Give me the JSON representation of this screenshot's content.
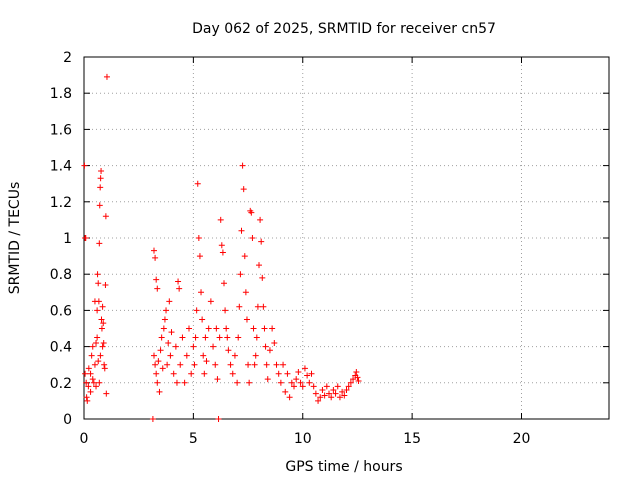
{
  "chart_data": {
    "type": "scatter",
    "title": "Day 062 of 2025, SRMTID for receiver cn57",
    "xlabel": "GPS time / hours",
    "ylabel": "SRMTID / TECUs",
    "xlim": [
      0,
      24
    ],
    "ylim": [
      0,
      2
    ],
    "xticks": [
      0,
      5,
      10,
      15,
      20
    ],
    "yticks": [
      0,
      0.2,
      0.4,
      0.6,
      0.8,
      1,
      1.2,
      1.4,
      1.6,
      1.8,
      2
    ],
    "xtick_labels": [
      "0",
      "5",
      "10",
      "15",
      "20"
    ],
    "ytick_labels": [
      "0",
      "0.2",
      "0.4",
      "0.6",
      "0.8",
      "1",
      "1.2",
      "1.4",
      "1.6",
      "1.8",
      "2"
    ],
    "grid": true,
    "marker": "+",
    "color": "#ff0000",
    "series": [
      {
        "name": "SRMTID",
        "points": [
          [
            0.02,
            1.4
          ],
          [
            0.05,
            1.0
          ],
          [
            0.08,
            1.0
          ],
          [
            0.05,
            0.25
          ],
          [
            0.1,
            0.2
          ],
          [
            0.12,
            0.12
          ],
          [
            0.15,
            0.1
          ],
          [
            0.2,
            0.18
          ],
          [
            0.22,
            0.28
          ],
          [
            0.3,
            0.25
          ],
          [
            0.35,
            0.35
          ],
          [
            0.4,
            0.4
          ],
          [
            0.45,
            0.2
          ],
          [
            0.5,
            0.3
          ],
          [
            0.55,
            0.42
          ],
          [
            0.6,
            0.6
          ],
          [
            0.62,
            0.8
          ],
          [
            0.65,
            0.75
          ],
          [
            0.68,
            0.65
          ],
          [
            0.7,
            0.97
          ],
          [
            0.72,
            1.18
          ],
          [
            0.74,
            1.28
          ],
          [
            0.76,
            1.33
          ],
          [
            0.78,
            1.37
          ],
          [
            0.8,
            0.55
          ],
          [
            0.82,
            0.5
          ],
          [
            0.85,
            0.62
          ],
          [
            0.88,
            0.53
          ],
          [
            0.9,
            0.42
          ],
          [
            0.92,
            0.3
          ],
          [
            0.95,
            0.28
          ],
          [
            0.98,
            0.74
          ],
          [
            1.0,
            1.12
          ],
          [
            1.02,
            0.14
          ],
          [
            1.05,
            1.89
          ],
          [
            0.3,
            0.15
          ],
          [
            0.4,
            0.22
          ],
          [
            0.55,
            0.18
          ],
          [
            0.6,
            0.45
          ],
          [
            0.75,
            0.35
          ],
          [
            0.85,
            0.4
          ],
          [
            0.7,
            0.2
          ],
          [
            0.5,
            0.65
          ],
          [
            0.65,
            0.32
          ],
          [
            3.15,
            0.0
          ],
          [
            6.15,
            0.0
          ],
          [
            3.2,
            0.93
          ],
          [
            3.25,
            0.89
          ],
          [
            3.3,
            0.77
          ],
          [
            3.35,
            0.72
          ],
          [
            3.2,
            0.35
          ],
          [
            3.25,
            0.3
          ],
          [
            3.3,
            0.25
          ],
          [
            3.35,
            0.2
          ],
          [
            3.4,
            0.32
          ],
          [
            3.45,
            0.15
          ],
          [
            3.5,
            0.38
          ],
          [
            3.55,
            0.45
          ],
          [
            3.6,
            0.28
          ],
          [
            3.65,
            0.5
          ],
          [
            3.7,
            0.55
          ],
          [
            3.75,
            0.6
          ],
          [
            3.8,
            0.3
          ],
          [
            3.85,
            0.42
          ],
          [
            3.9,
            0.65
          ],
          [
            3.95,
            0.35
          ],
          [
            4.0,
            0.48
          ],
          [
            4.1,
            0.25
          ],
          [
            4.2,
            0.4
          ],
          [
            4.25,
            0.2
          ],
          [
            4.3,
            0.76
          ],
          [
            4.35,
            0.72
          ],
          [
            4.4,
            0.3
          ],
          [
            4.5,
            0.45
          ],
          [
            4.6,
            0.2
          ],
          [
            4.7,
            0.35
          ],
          [
            4.8,
            0.5
          ],
          [
            4.9,
            0.25
          ],
          [
            5.0,
            0.4
          ],
          [
            5.05,
            0.3
          ],
          [
            5.1,
            0.45
          ],
          [
            5.15,
            0.6
          ],
          [
            5.2,
            1.3
          ],
          [
            5.25,
            1.0
          ],
          [
            5.3,
            0.9
          ],
          [
            5.35,
            0.7
          ],
          [
            5.4,
            0.55
          ],
          [
            5.45,
            0.35
          ],
          [
            5.5,
            0.25
          ],
          [
            5.55,
            0.45
          ],
          [
            5.6,
            0.32
          ],
          [
            5.7,
            0.5
          ],
          [
            5.8,
            0.65
          ],
          [
            5.9,
            0.4
          ],
          [
            6.0,
            0.3
          ],
          [
            6.05,
            0.5
          ],
          [
            6.1,
            0.22
          ],
          [
            6.2,
            0.45
          ],
          [
            6.25,
            1.1
          ],
          [
            6.3,
            0.96
          ],
          [
            6.35,
            0.92
          ],
          [
            6.4,
            0.75
          ],
          [
            6.45,
            0.6
          ],
          [
            6.5,
            0.5
          ],
          [
            6.55,
            0.45
          ],
          [
            6.6,
            0.38
          ],
          [
            6.7,
            0.3
          ],
          [
            6.8,
            0.25
          ],
          [
            6.9,
            0.35
          ],
          [
            7.0,
            0.2
          ],
          [
            7.05,
            0.45
          ],
          [
            7.1,
            0.62
          ],
          [
            7.15,
            0.8
          ],
          [
            7.2,
            1.04
          ],
          [
            7.25,
            1.4
          ],
          [
            7.3,
            1.27
          ],
          [
            7.35,
            0.9
          ],
          [
            7.4,
            0.7
          ],
          [
            7.45,
            0.55
          ],
          [
            7.5,
            0.3
          ],
          [
            7.55,
            0.2
          ],
          [
            7.6,
            1.15
          ],
          [
            7.65,
            1.14
          ],
          [
            7.7,
            1.0
          ],
          [
            7.75,
            0.5
          ],
          [
            7.8,
            0.3
          ],
          [
            7.85,
            0.35
          ],
          [
            7.9,
            0.45
          ],
          [
            7.95,
            0.62
          ],
          [
            8.0,
            0.85
          ],
          [
            8.05,
            1.1
          ],
          [
            8.1,
            0.98
          ],
          [
            8.15,
            0.78
          ],
          [
            8.2,
            0.62
          ],
          [
            8.25,
            0.5
          ],
          [
            8.3,
            0.4
          ],
          [
            8.35,
            0.3
          ],
          [
            8.4,
            0.22
          ],
          [
            8.5,
            0.38
          ],
          [
            8.6,
            0.5
          ],
          [
            8.7,
            0.42
          ],
          [
            8.8,
            0.3
          ],
          [
            8.9,
            0.25
          ],
          [
            9.0,
            0.2
          ],
          [
            9.1,
            0.3
          ],
          [
            9.2,
            0.15
          ],
          [
            9.3,
            0.25
          ],
          [
            9.4,
            0.12
          ],
          [
            9.5,
            0.2
          ],
          [
            9.6,
            0.18
          ],
          [
            9.7,
            0.22
          ],
          [
            9.8,
            0.26
          ],
          [
            9.9,
            0.2
          ],
          [
            10.0,
            0.18
          ],
          [
            10.1,
            0.28
          ],
          [
            10.2,
            0.24
          ],
          [
            10.3,
            0.2
          ],
          [
            10.4,
            0.25
          ],
          [
            10.5,
            0.18
          ],
          [
            10.6,
            0.14
          ],
          [
            10.7,
            0.1
          ],
          [
            10.8,
            0.12
          ],
          [
            10.9,
            0.16
          ],
          [
            11.0,
            0.13
          ],
          [
            11.1,
            0.18
          ],
          [
            11.2,
            0.14
          ],
          [
            11.3,
            0.12
          ],
          [
            11.4,
            0.16
          ],
          [
            11.5,
            0.14
          ],
          [
            11.6,
            0.18
          ],
          [
            11.7,
            0.12
          ],
          [
            11.8,
            0.15
          ],
          [
            11.9,
            0.13
          ],
          [
            12.0,
            0.16
          ],
          [
            12.1,
            0.18
          ],
          [
            12.2,
            0.2
          ],
          [
            12.3,
            0.22
          ],
          [
            12.4,
            0.24
          ],
          [
            12.45,
            0.26
          ],
          [
            12.5,
            0.23
          ],
          [
            12.55,
            0.21
          ]
        ]
      }
    ]
  }
}
